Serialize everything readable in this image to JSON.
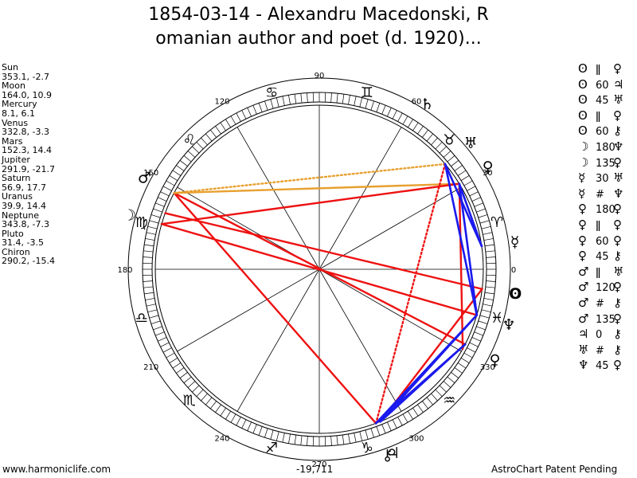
{
  "title": {
    "line1": "1854-03-14 - Alexandru Macedonski, R",
    "line2": "omanian author and poet (d. 1920)..."
  },
  "planets": [
    {
      "name": "Sun",
      "lon": 353.1,
      "lat": -2.7,
      "text": "353.1, -2.7",
      "glyph": "ʘ"
    },
    {
      "name": "Moon",
      "lon": 164.0,
      "lat": 10.9,
      "text": "164.0, 10.9",
      "glyph": "☽"
    },
    {
      "name": "Mercury",
      "lon": 8.1,
      "lat": 6.1,
      "text": "8.1, 6.1",
      "glyph": "☿"
    },
    {
      "name": "Venus",
      "lon": 332.8,
      "lat": -3.3,
      "text": "332.8, -3.3",
      "glyph": "♀"
    },
    {
      "name": "Mars",
      "lon": 152.3,
      "lat": 14.4,
      "text": "152.3, 14.4",
      "glyph": "♂"
    },
    {
      "name": "Jupiter",
      "lon": 291.9,
      "lat": -21.7,
      "text": "291.9, -21.7",
      "glyph": "♃"
    },
    {
      "name": "Saturn",
      "lon": 56.9,
      "lat": 17.7,
      "text": "56.9, 17.7",
      "glyph": "♄"
    },
    {
      "name": "Uranus",
      "lon": 39.9,
      "lat": 14.4,
      "text": "39.9, 14.4",
      "glyph": "♅"
    },
    {
      "name": "Neptune",
      "lon": 343.8,
      "lat": -7.3,
      "text": "343.8, -7.3",
      "glyph": "♆"
    },
    {
      "name": "Pluto",
      "lon": 31.4,
      "lat": -3.5,
      "text": "31.4, -3.5",
      "glyph": "♀"
    },
    {
      "name": "Chiron",
      "lon": 290.2,
      "lat": -15.4,
      "text": "290.2, -15.4",
      "glyph": "⚷"
    }
  ],
  "aspect_list": [
    {
      "p1": "ʘ",
      "aspect": "ǁ",
      "p2": "♀"
    },
    {
      "p1": "ʘ",
      "aspect": "60",
      "p2": "♃"
    },
    {
      "p1": "ʘ",
      "aspect": "45",
      "p2": "♅"
    },
    {
      "p1": "ʘ",
      "aspect": "ǁ",
      "p2": "♀"
    },
    {
      "p1": "ʘ",
      "aspect": "60",
      "p2": "⚷"
    },
    {
      "p1": "☽",
      "aspect": "180",
      "p2": "♆"
    },
    {
      "p1": "☽",
      "aspect": "135",
      "p2": "♀"
    },
    {
      "p1": "☿",
      "aspect": "30",
      "p2": "♅"
    },
    {
      "p1": "☿",
      "aspect": "#",
      "p2": "♆"
    },
    {
      "p1": "♀",
      "aspect": "180",
      "p2": "♀"
    },
    {
      "p1": "♀",
      "aspect": "ǁ",
      "p2": "♀"
    },
    {
      "p1": "♀",
      "aspect": "60",
      "p2": "♀"
    },
    {
      "p1": "♀",
      "aspect": "45",
      "p2": "⚷"
    },
    {
      "p1": "♂",
      "aspect": "ǁ",
      "p2": "♅"
    },
    {
      "p1": "♂",
      "aspect": "120",
      "p2": "♀"
    },
    {
      "p1": "♂",
      "aspect": "#",
      "p2": "⚷"
    },
    {
      "p1": "♂",
      "aspect": "135",
      "p2": "♀"
    },
    {
      "p1": "♃",
      "aspect": "0",
      "p2": "⚷"
    },
    {
      "p1": "♅",
      "aspect": "#",
      "p2": "⚷"
    },
    {
      "p1": "♆",
      "aspect": "45",
      "p2": "♀"
    }
  ],
  "chart_data": {
    "type": "other",
    "degree_labels": [
      {
        "deg": 0,
        "text": "0"
      },
      {
        "deg": 30,
        "text": "30"
      },
      {
        "deg": 60,
        "text": "60"
      },
      {
        "deg": 90,
        "text": "90"
      },
      {
        "deg": 120,
        "text": "120"
      },
      {
        "deg": 150,
        "text": "150"
      },
      {
        "deg": 180,
        "text": "180"
      },
      {
        "deg": 210,
        "text": "210"
      },
      {
        "deg": 240,
        "text": "240"
      },
      {
        "deg": 270,
        "text": "270"
      },
      {
        "deg": 300,
        "text": "300"
      },
      {
        "deg": 330,
        "text": "330"
      }
    ],
    "signs": [
      {
        "deg": 15,
        "glyph": "♈"
      },
      {
        "deg": 45,
        "glyph": "♉"
      },
      {
        "deg": 75,
        "glyph": "♊"
      },
      {
        "deg": 105,
        "glyph": "♋"
      },
      {
        "deg": 135,
        "glyph": "♌"
      },
      {
        "deg": 165,
        "glyph": "♍"
      },
      {
        "deg": 195,
        "glyph": "♎"
      },
      {
        "deg": 225,
        "glyph": "♏"
      },
      {
        "deg": 255,
        "glyph": "♐"
      },
      {
        "deg": 285,
        "glyph": "♑"
      },
      {
        "deg": 315,
        "glyph": "♒"
      },
      {
        "deg": 345,
        "glyph": "♓"
      }
    ],
    "aspect_lines": [
      {
        "from": 152.3,
        "to": 332.8,
        "color": "#ee1111",
        "style": "solid"
      },
      {
        "from": 152.3,
        "to": 290.2,
        "color": "#ee1111",
        "style": "solid"
      },
      {
        "from": 152.3,
        "to": 31.4,
        "color": "#e8a030",
        "style": "solid"
      },
      {
        "from": 164.0,
        "to": 343.8,
        "color": "#ee1111",
        "style": "solid"
      },
      {
        "from": 164.0,
        "to": 31.4,
        "color": "#ee1111",
        "style": "solid"
      },
      {
        "from": 160.0,
        "to": 353.1,
        "color": "#ee1111",
        "style": "solid"
      },
      {
        "from": 39.9,
        "to": 152.3,
        "color": "#e8a030",
        "style": "dotted"
      },
      {
        "from": 39.9,
        "to": 290.2,
        "color": "#ee1111",
        "style": "dotted"
      },
      {
        "from": 291.9,
        "to": 353.1,
        "color": "#ee1111",
        "style": "solid"
      },
      {
        "from": 290.2,
        "to": 332.8,
        "color": "#ee1111",
        "style": "solid"
      },
      {
        "from": 331.0,
        "to": 31.4,
        "color": "#ee1111",
        "style": "solid"
      },
      {
        "from": 343.8,
        "to": 31.4,
        "color": "#e8a030",
        "style": "dotted"
      },
      {
        "from": 8.1,
        "to": 39.9,
        "color": "#1a1aee",
        "style": "solid"
      },
      {
        "from": 8.1,
        "to": 31.4,
        "color": "#1a1aee",
        "style": "solid"
      },
      {
        "from": 31.4,
        "to": 343.8,
        "color": "#1a1aee",
        "style": "solid"
      },
      {
        "from": 39.9,
        "to": 343.8,
        "color": "#1a1aee",
        "style": "solid"
      },
      {
        "from": 343.8,
        "to": 290.2,
        "color": "#1a1aee",
        "style": "solid"
      },
      {
        "from": 343.8,
        "to": 291.9,
        "color": "#1a1aee",
        "style": "solid"
      },
      {
        "from": 332.8,
        "to": 291.9,
        "color": "#1a1aee",
        "style": "solid"
      },
      {
        "from": 332.8,
        "to": 290.2,
        "color": "#1a1aee",
        "style": "solid"
      }
    ]
  },
  "footer": {
    "site": "www.harmoniclife.com",
    "mid": "-19,711",
    "patent": "AstroChart Patent Pending"
  }
}
